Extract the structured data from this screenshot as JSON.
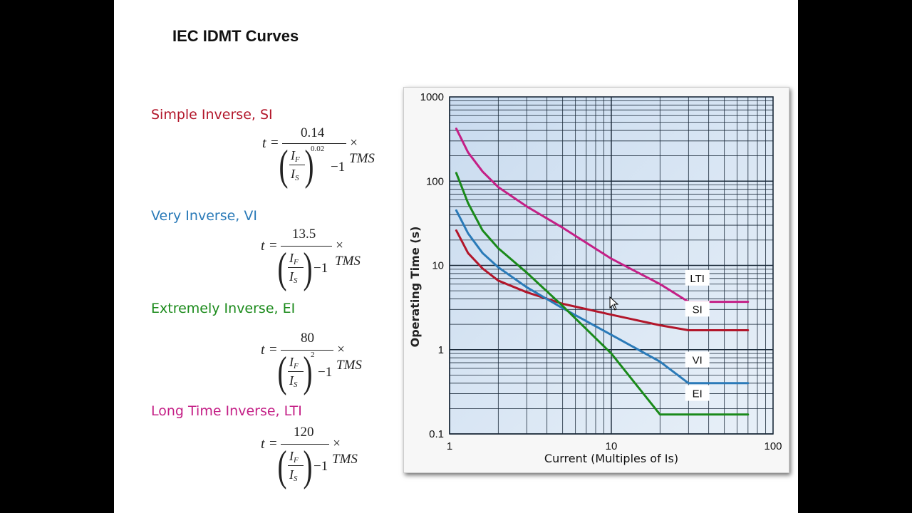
{
  "title": "IEC IDMT Curves",
  "formulas": [
    {
      "name": "Simple Inverse, SI",
      "color": "#b2162a",
      "numerator": "0.14",
      "exponent": "0.02",
      "minus": "−1",
      "t": "t",
      "eq": "=",
      "times": "× TMS",
      "if_label": "I",
      "if_sub": "F",
      "is_label": "I",
      "is_sub": "S"
    },
    {
      "name": "Very Inverse, VI",
      "color": "#2a7ab8",
      "numerator": "13.5",
      "exponent": "",
      "minus": "−1",
      "t": "t",
      "eq": "=",
      "times": "× TMS",
      "if_label": "I",
      "if_sub": "F",
      "is_label": "I",
      "is_sub": "S"
    },
    {
      "name": "Extremely Inverse, EI",
      "color": "#1a8a1a",
      "numerator": "80",
      "exponent": "2",
      "minus": "−1",
      "t": "t",
      "eq": "=",
      "times": "× TMS",
      "if_label": "I",
      "if_sub": "F",
      "is_label": "I",
      "is_sub": "S"
    },
    {
      "name": "Long Time Inverse, LTI",
      "color": "#c41f86",
      "numerator": "120",
      "exponent": "",
      "minus": "−1",
      "t": "t",
      "eq": "=",
      "times": "× TMS",
      "if_label": "I",
      "if_sub": "F",
      "is_label": "I",
      "is_sub": "S"
    }
  ],
  "chart_data": {
    "type": "line",
    "xlabel": "Current (Multiples of Is)",
    "ylabel": "Operating Time (s)",
    "x_scale": "log",
    "y_scale": "log",
    "xlim": [
      1,
      100
    ],
    "ylim": [
      0.1,
      1000
    ],
    "x_ticks": [
      "1",
      "10",
      "100"
    ],
    "y_ticks": [
      "0.1",
      "1",
      "10",
      "100",
      "1000"
    ],
    "grid": true,
    "series": [
      {
        "name": "LTI",
        "color": "#c41f86",
        "points": [
          [
            1.1,
            420
          ],
          [
            1.3,
            220
          ],
          [
            1.6,
            130
          ],
          [
            2,
            85
          ],
          [
            3,
            50
          ],
          [
            5,
            28
          ],
          [
            10,
            12
          ],
          [
            20,
            6
          ],
          [
            30,
            3.7
          ],
          [
            70,
            3.7
          ]
        ]
      },
      {
        "name": "SI",
        "color": "#b2162a",
        "points": [
          [
            1.1,
            26
          ],
          [
            1.3,
            14
          ],
          [
            1.6,
            9.2
          ],
          [
            2,
            6.6
          ],
          [
            3,
            4.8
          ],
          [
            5,
            3.5
          ],
          [
            10,
            2.6
          ],
          [
            20,
            1.95
          ],
          [
            30,
            1.7
          ],
          [
            70,
            1.7
          ]
        ]
      },
      {
        "name": "VI",
        "color": "#2a7ab8",
        "points": [
          [
            1.1,
            45
          ],
          [
            1.3,
            24
          ],
          [
            1.6,
            14
          ],
          [
            2,
            9.5
          ],
          [
            3,
            5.5
          ],
          [
            5,
            3.1
          ],
          [
            10,
            1.5
          ],
          [
            20,
            0.72
          ],
          [
            30,
            0.4
          ],
          [
            70,
            0.4
          ]
        ]
      },
      {
        "name": "EI",
        "color": "#1a8a1a",
        "points": [
          [
            1.1,
            125
          ],
          [
            1.3,
            55
          ],
          [
            1.6,
            26
          ],
          [
            2,
            16
          ],
          [
            3,
            8.2
          ],
          [
            5,
            3.3
          ],
          [
            10,
            0.9
          ],
          [
            20,
            0.17
          ],
          [
            70,
            0.17
          ]
        ]
      }
    ]
  }
}
